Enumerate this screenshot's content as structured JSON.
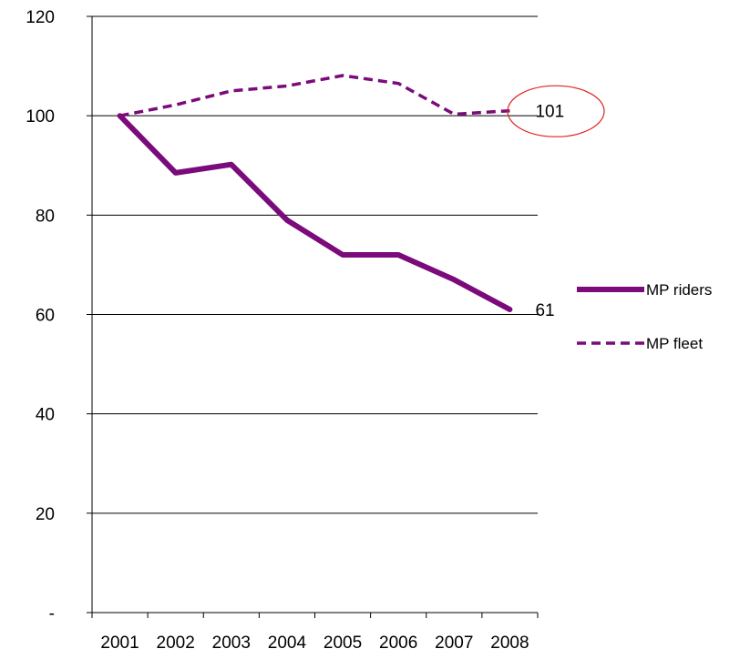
{
  "chart_data": {
    "type": "line",
    "categories": [
      "2001",
      "2002",
      "2003",
      "2004",
      "2005",
      "2006",
      "2007",
      "2008"
    ],
    "y_tick_labels": [
      "-",
      "20",
      "40",
      "60",
      "80",
      "100",
      "120"
    ],
    "ylim": [
      0,
      120
    ],
    "y_tick_step": 20,
    "grid": "horizontal",
    "legend_placement": "right",
    "series": [
      {
        "name": "MP riders",
        "style": "solid",
        "color": "#7b0a7b",
        "values": [
          100,
          88.5,
          90.2,
          79,
          72,
          72,
          67,
          61
        ],
        "end_label": "61"
      },
      {
        "name": "MP fleet",
        "style": "dashed",
        "color": "#7b0a7b",
        "values": [
          100,
          102.2,
          105,
          106,
          108.1,
          106.5,
          100.3,
          101
        ],
        "end_label": "101"
      }
    ],
    "highlight": {
      "shape": "ellipse",
      "target": "MP fleet end label",
      "color": "#e0221e"
    },
    "title": "",
    "xlabel": "",
    "ylabel": ""
  }
}
